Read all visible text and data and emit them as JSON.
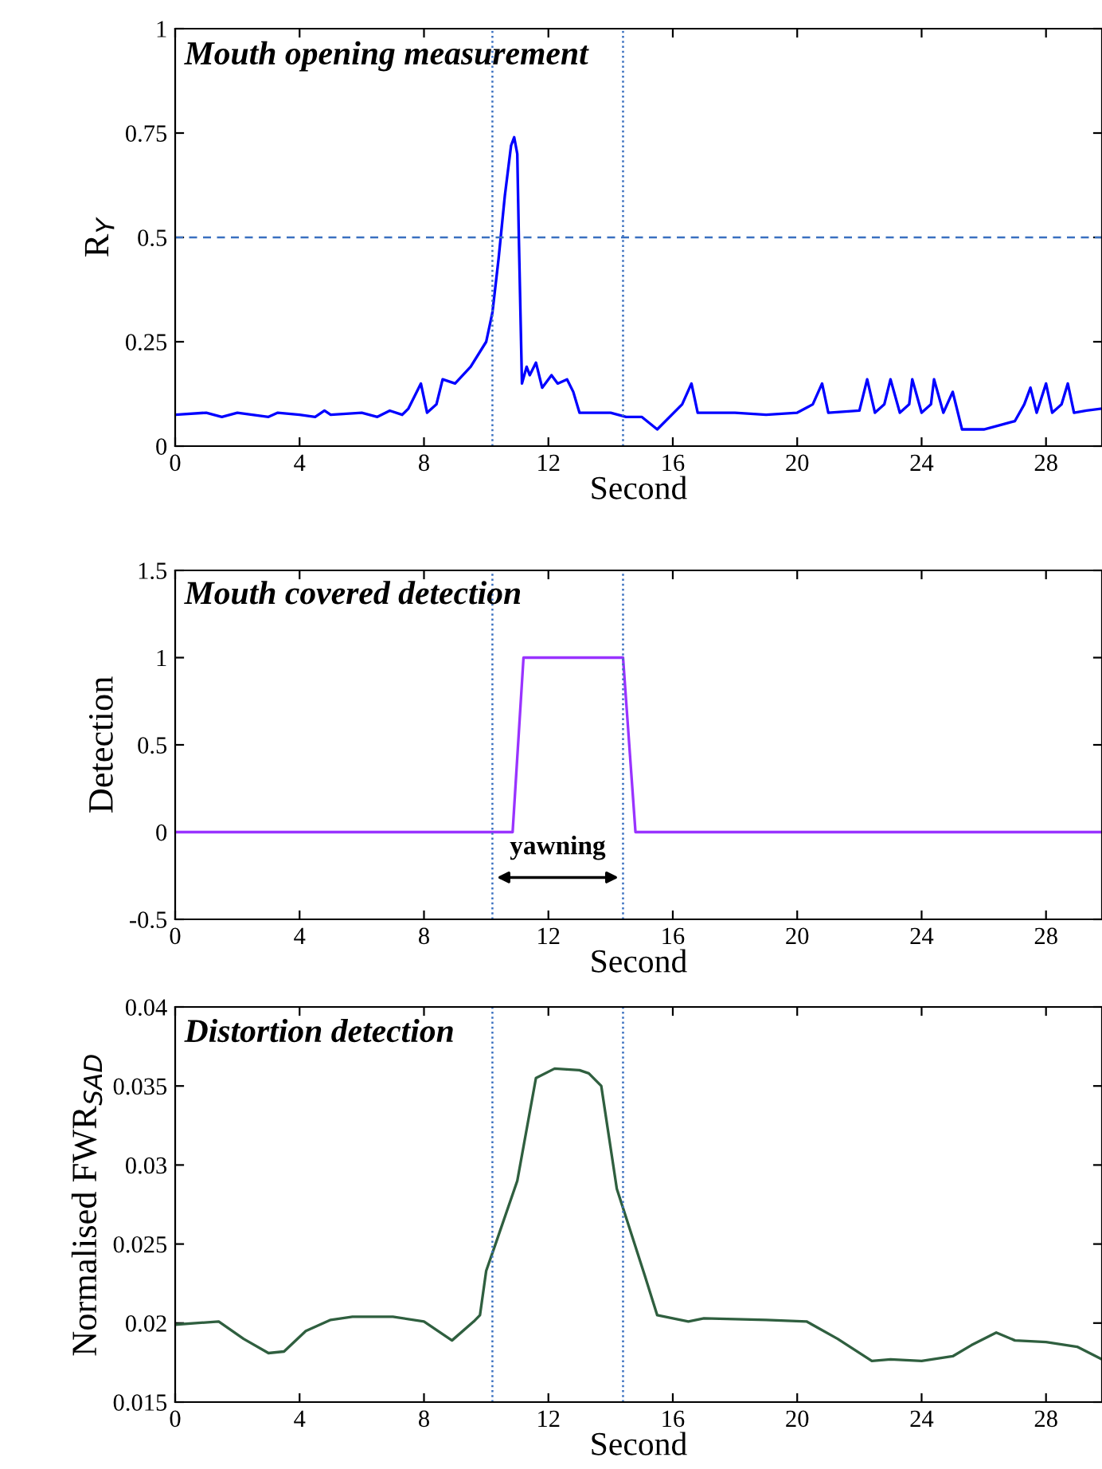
{
  "chart_data": [
    {
      "type": "line",
      "title": "Mouth opening measurement",
      "xlabel": "Second",
      "ylabel": "R$_{Y}$",
      "xlim": [
        0,
        29.8
      ],
      "xticks": [
        0,
        4,
        8,
        12,
        16,
        20,
        24,
        28
      ],
      "ylim": [
        0,
        1
      ],
      "yticks": [
        0,
        0.25,
        0.5,
        0.75,
        1
      ],
      "series": [
        {
          "color": "#0000ff",
          "x": [
            0,
            1,
            1.5,
            2,
            3,
            3.3,
            4,
            4.5,
            4.8,
            5,
            6,
            6.5,
            6.9,
            7.3,
            7.5,
            7.9,
            8.1,
            8.4,
            8.6,
            9,
            9.5,
            10,
            10.2,
            10.4,
            10.6,
            10.8,
            10.9,
            11.0,
            11.05,
            11.15,
            11.3,
            11.4,
            11.6,
            11.8,
            12.1,
            12.3,
            12.6,
            12.8,
            13.0,
            14,
            14.5,
            15,
            15.5,
            16.3,
            16.6,
            16.8,
            18,
            19,
            20,
            20.5,
            20.8,
            21,
            22,
            22.25,
            22.5,
            22.8,
            23.0,
            23.3,
            23.6,
            23.7,
            24.0,
            24.3,
            24.4,
            24.7,
            25.0,
            25.3,
            26,
            26.5,
            27,
            27.3,
            27.5,
            27.7,
            28.0,
            28.2,
            28.5,
            28.7,
            28.9,
            29.3,
            29.8
          ],
          "values": [
            0.075,
            0.08,
            0.07,
            0.08,
            0.07,
            0.08,
            0.075,
            0.07,
            0.085,
            0.075,
            0.08,
            0.07,
            0.085,
            0.075,
            0.09,
            0.15,
            0.08,
            0.1,
            0.16,
            0.15,
            0.19,
            0.25,
            0.32,
            0.45,
            0.6,
            0.72,
            0.74,
            0.7,
            0.5,
            0.15,
            0.19,
            0.17,
            0.2,
            0.14,
            0.17,
            0.15,
            0.16,
            0.13,
            0.08,
            0.08,
            0.07,
            0.07,
            0.04,
            0.1,
            0.15,
            0.08,
            0.08,
            0.075,
            0.08,
            0.1,
            0.15,
            0.08,
            0.085,
            0.16,
            0.08,
            0.1,
            0.16,
            0.08,
            0.1,
            0.16,
            0.08,
            0.1,
            0.16,
            0.08,
            0.13,
            0.04,
            0.04,
            0.05,
            0.06,
            0.1,
            0.14,
            0.08,
            0.15,
            0.08,
            0.1,
            0.15,
            0.08,
            0.085,
            0.09
          ]
        }
      ],
      "ref_lines": [
        {
          "axis": "y",
          "value": 0.5,
          "line_style": "dashed",
          "color": "#3a70c0"
        },
        {
          "axis": "x",
          "value": 10.2,
          "line_style": "dotted",
          "color": "#3a70c0"
        },
        {
          "axis": "x",
          "value": 14.4,
          "line_style": "dotted",
          "color": "#3a70c0"
        }
      ]
    },
    {
      "type": "line",
      "title": "Mouth covered detection",
      "xlabel": "Second",
      "ylabel": "Detection",
      "xlim": [
        0,
        29.8
      ],
      "xticks": [
        0,
        4,
        8,
        12,
        16,
        20,
        24,
        28
      ],
      "ylim": [
        -0.5,
        1.5
      ],
      "yticks": [
        -0.5,
        0,
        0.5,
        1,
        1.5
      ],
      "series": [
        {
          "color": "#9933ff",
          "x": [
            0,
            10.85,
            11.2,
            14.4,
            14.8,
            29.8
          ],
          "values": [
            0,
            0,
            1,
            1,
            0,
            0
          ]
        }
      ],
      "ref_lines": [
        {
          "axis": "x",
          "value": 10.2,
          "line_style": "dotted",
          "color": "#3a70c0"
        },
        {
          "axis": "x",
          "value": 14.4,
          "line_style": "dotted",
          "color": "#3a70c0"
        }
      ],
      "annotations": [
        "yawning"
      ]
    },
    {
      "type": "line",
      "title": "Distortion detection",
      "xlabel": "Second",
      "ylabel": "Normalised FWR$_{SAD}$",
      "xlim": [
        0,
        29.8
      ],
      "xticks": [
        0,
        4,
        8,
        12,
        16,
        20,
        24,
        28
      ],
      "ylim": [
        0.015,
        0.04
      ],
      "yticks": [
        0.015,
        0.02,
        0.025,
        0.03,
        0.035,
        0.04
      ],
      "series": [
        {
          "color": "#2f5f3f",
          "x": [
            0,
            1.4,
            2.2,
            3.0,
            3.5,
            4.2,
            5,
            5.7,
            7,
            8,
            8.9,
            9.6,
            9.8,
            10.0,
            10.3,
            11,
            11.6,
            12.2,
            13,
            13.3,
            13.7,
            14.2,
            15.1,
            15.5,
            16.5,
            17,
            19,
            20.3,
            21.3,
            22.4,
            23,
            24,
            25,
            25.6,
            26.4,
            27,
            28,
            29,
            29.8
          ],
          "values": [
            0.0199,
            0.0201,
            0.019,
            0.0181,
            0.0182,
            0.0195,
            0.0202,
            0.0204,
            0.0204,
            0.0201,
            0.0189,
            0.0201,
            0.0205,
            0.0233,
            0.025,
            0.029,
            0.0355,
            0.0361,
            0.036,
            0.0358,
            0.035,
            0.0285,
            0.023,
            0.0205,
            0.0201,
            0.0203,
            0.0202,
            0.0201,
            0.019,
            0.0176,
            0.0177,
            0.0176,
            0.0179,
            0.0186,
            0.0194,
            0.0189,
            0.0188,
            0.0185,
            0.0177
          ]
        }
      ],
      "ref_lines": [
        {
          "axis": "x",
          "value": 10.2,
          "line_style": "dotted",
          "color": "#3a70c0"
        },
        {
          "axis": "x",
          "value": 14.4,
          "line_style": "dotted",
          "color": "#3a70c0"
        }
      ]
    }
  ]
}
